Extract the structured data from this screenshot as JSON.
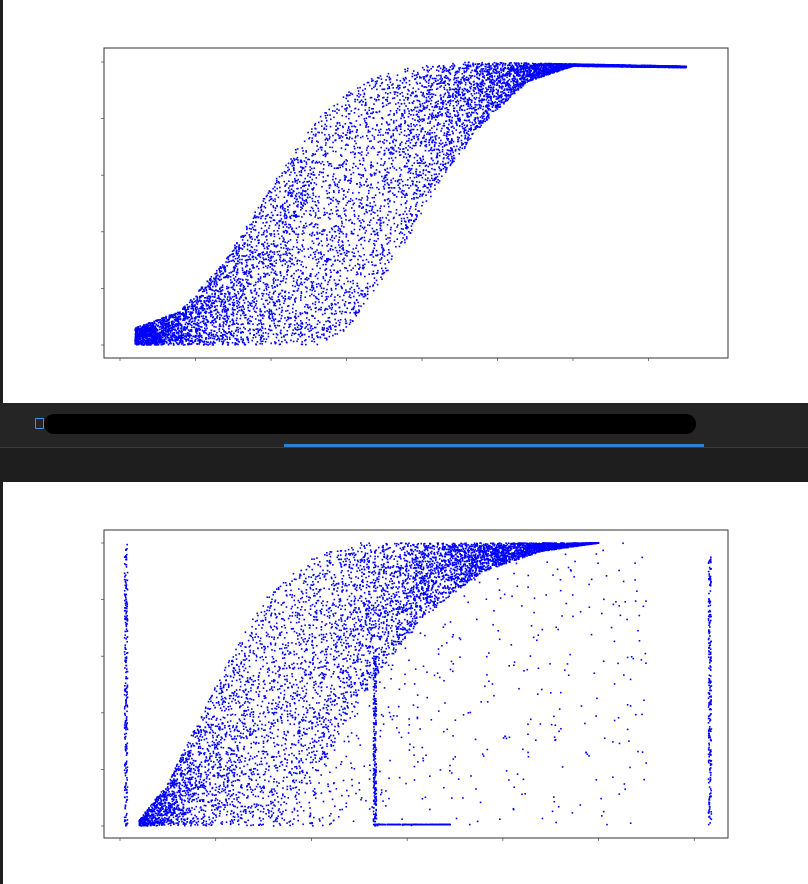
{
  "chart_data": [
    {
      "type": "scatter",
      "title": "",
      "xlabel": "",
      "ylabel": "",
      "point_color": "#0000ff",
      "grid": false,
      "xlim": [
        0,
        8
      ],
      "ylim": [
        0,
        1
      ],
      "x_ticks": [
        0,
        1,
        2,
        3,
        4,
        5,
        6,
        7
      ],
      "y_ticks": [
        0,
        0.2,
        0.4,
        0.6,
        0.8,
        1.0
      ],
      "band_lower": [
        [
          0.2,
          0.0
        ],
        [
          2.6,
          0.0
        ],
        [
          3.0,
          0.05
        ],
        [
          3.6,
          0.28
        ],
        [
          4.2,
          0.56
        ],
        [
          4.8,
          0.78
        ],
        [
          5.4,
          0.93
        ],
        [
          6.0,
          0.985
        ],
        [
          7.5,
          0.98
        ]
      ],
      "band_upper": [
        [
          0.2,
          0.06
        ],
        [
          0.8,
          0.12
        ],
        [
          1.4,
          0.3
        ],
        [
          2.0,
          0.56
        ],
        [
          2.6,
          0.8
        ],
        [
          3.2,
          0.93
        ],
        [
          3.8,
          0.98
        ],
        [
          4.6,
          1.0
        ],
        [
          7.5,
          0.985
        ]
      ]
    },
    {
      "type": "scatter",
      "title": "",
      "xlabel": "",
      "ylabel": "",
      "point_color": "#0000ff",
      "grid": false,
      "xlim": [
        0,
        6.3
      ],
      "ylim": [
        0,
        1
      ],
      "x_ticks": [
        0,
        1,
        2,
        3,
        4,
        5,
        6
      ],
      "y_ticks": [
        0,
        0.2,
        0.4,
        0.6,
        0.8,
        1.0
      ],
      "band_lower": [
        [
          0.2,
          0.0
        ],
        [
          1.5,
          0.0
        ],
        [
          2.0,
          0.15
        ],
        [
          2.6,
          0.5
        ],
        [
          3.2,
          0.75
        ],
        [
          3.8,
          0.9
        ],
        [
          4.4,
          0.97
        ],
        [
          5.0,
          1.0
        ]
      ],
      "band_upper": [
        [
          0.2,
          0.02
        ],
        [
          0.5,
          0.15
        ],
        [
          1.0,
          0.5
        ],
        [
          1.5,
          0.8
        ],
        [
          2.0,
          0.95
        ],
        [
          2.5,
          1.0
        ],
        [
          4.0,
          1.0
        ]
      ],
      "vertical_lines": [
        [
          0.05,
          0.0,
          1.0
        ],
        [
          2.65,
          0.0,
          0.6
        ],
        [
          6.15,
          0.0,
          0.95
        ]
      ]
    }
  ]
}
